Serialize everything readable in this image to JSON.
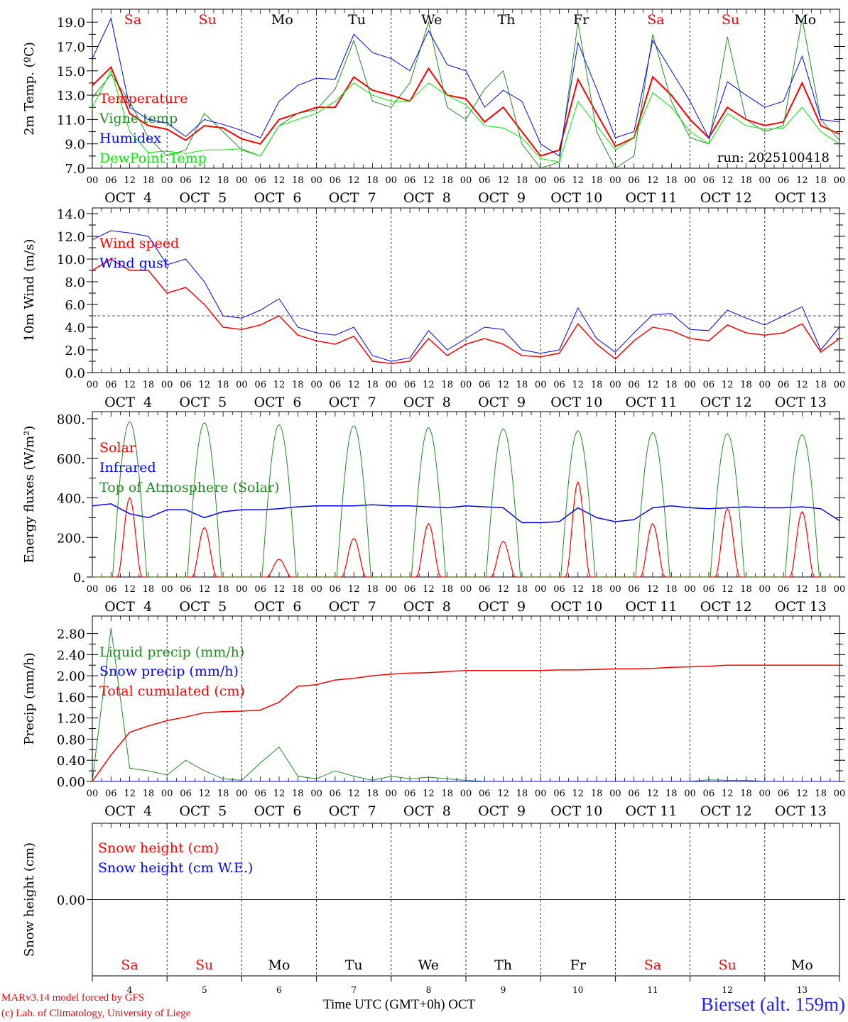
{
  "footer": {
    "credit_line1": "MARv3.14 model forced by GFS",
    "credit_line2": "(c) Lab. of Climatology, University of Liege",
    "time_axis_label": "Time UTC (GMT+0h) OCT",
    "station": "Bierset (alt. 159m)",
    "run": "run: 2025100418"
  },
  "x_axis": {
    "hour_labels": [
      "00",
      "06",
      "12",
      "18"
    ],
    "final_hour_label": "00",
    "date_labels": [
      "OCT  4",
      "OCT  5",
      "OCT  6",
      "OCT  7",
      "OCT  8",
      "OCT  9",
      "OCT 10",
      "OCT 11",
      "OCT 12",
      "OCT 13"
    ],
    "day_numbers": [
      "4",
      "5",
      "6",
      "7",
      "8",
      "9",
      "10",
      "11",
      "12",
      "13"
    ],
    "day_names": [
      "Sa",
      "Su",
      "Mo",
      "Tu",
      "We",
      "Th",
      "Fr",
      "Sa",
      "Su",
      "Mo"
    ],
    "day_name_colors": [
      "#ff0000",
      "#ff0000",
      "#000000",
      "#000000",
      "#000000",
      "#000000",
      "#000000",
      "#ff0000",
      "#ff0000",
      "#000000"
    ],
    "days": 10,
    "step_hours": 6
  },
  "chart_data": [
    {
      "type": "line",
      "ylabel": "2m Temp. (ºC)",
      "ylim": [
        7.0,
        20.06
      ],
      "yticks": [
        7.0,
        9.0,
        11.0,
        13.0,
        15.0,
        17.0,
        19.0
      ],
      "ytick_labels": [
        "7.0",
        "9.0",
        "11.0",
        "13.0",
        "15.0",
        "17.0",
        "19.0"
      ],
      "show_day_names": true,
      "series": [
        {
          "name": "Temperature",
          "color": "#ff0000",
          "width": 2,
          "values": [
            13.8,
            15.3,
            11.5,
            10.5,
            10.2,
            9.3,
            10.5,
            10.3,
            9.4,
            9.0,
            11.0,
            11.5,
            12.0,
            12.0,
            14.5,
            13.4,
            13.0,
            12.5,
            15.2,
            13.0,
            12.7,
            10.8,
            12.0,
            10.0,
            8.0,
            8.5,
            14.3,
            11.5,
            8.8,
            9.5,
            14.5,
            13.0,
            11.0,
            9.5,
            12.0,
            11.0,
            10.5,
            10.8,
            14.0,
            10.5,
            9.8
          ]
        },
        {
          "name": "Vigne temp",
          "color": "#228b22",
          "width": 1,
          "values": [
            12.8,
            14.7,
            12.5,
            9.5,
            8.0,
            8.5,
            11.5,
            10.0,
            8.5,
            8.0,
            10.5,
            11.5,
            11.8,
            13.5,
            17.5,
            12.5,
            12.0,
            14.0,
            19.0,
            12.0,
            11.0,
            13.5,
            15.0,
            9.0,
            7.0,
            7.5,
            19.0,
            10.0,
            6.5,
            8.0,
            18.0,
            12.5,
            9.5,
            9.0,
            17.8,
            11.0,
            10.0,
            10.5,
            19.3,
            11.0,
            9.3
          ]
        },
        {
          "name": "Humidex",
          "color": "#0000ff",
          "width": 1,
          "values": [
            16.0,
            19.3,
            12.0,
            11.0,
            10.7,
            9.6,
            11.0,
            10.6,
            10.1,
            9.5,
            12.5,
            13.8,
            14.4,
            14.3,
            18.0,
            16.5,
            16.0,
            15.0,
            18.3,
            15.5,
            15.0,
            12.0,
            13.4,
            12.5,
            9.0,
            8.0,
            17.3,
            13.5,
            9.5,
            10.0,
            17.5,
            15.0,
            12.5,
            9.5,
            14.1,
            13.0,
            12.0,
            12.5,
            16.2,
            11.0,
            10.8
          ]
        },
        {
          "name": "DewPoint Temp",
          "color": "#00ee00",
          "width": 1,
          "values": [
            12.0,
            15.0,
            10.0,
            8.3,
            8.4,
            8.2,
            8.5,
            8.5,
            8.6,
            8.0,
            10.5,
            11.0,
            11.5,
            12.5,
            14.0,
            13.0,
            12.5,
            12.5,
            14.0,
            13.0,
            12.2,
            10.5,
            10.3,
            9.5,
            7.8,
            7.5,
            12.5,
            10.5,
            8.5,
            9.5,
            13.2,
            12.0,
            10.0,
            9.0,
            11.5,
            10.5,
            10.2,
            10.3,
            12.0,
            10.0,
            9.0
          ]
        }
      ]
    },
    {
      "type": "line",
      "ylabel": "10m Wind (m/s)",
      "ylim": [
        0,
        14.5
      ],
      "yticks": [
        0,
        2,
        4,
        6,
        8,
        10,
        12,
        14
      ],
      "ytick_labels": [
        "0.0",
        "2.0",
        "4.0",
        "6.0",
        "8.0",
        "10.0",
        "12.0",
        "14.0"
      ],
      "reference_line": 5.0,
      "series": [
        {
          "name": "Wind speed",
          "color": "#ff0000",
          "width": 1.5,
          "values": [
            9.0,
            10.0,
            9.0,
            9.0,
            7.0,
            7.5,
            6.0,
            4.0,
            3.8,
            4.2,
            5.0,
            3.3,
            2.8,
            2.5,
            3.2,
            1.0,
            0.8,
            1.0,
            3.0,
            1.5,
            2.5,
            3.0,
            2.5,
            1.5,
            1.4,
            1.7,
            4.3,
            2.5,
            1.2,
            2.8,
            4.0,
            3.7,
            3.0,
            2.8,
            4.2,
            3.5,
            3.3,
            3.5,
            4.3,
            1.8,
            3.0
          ]
        },
        {
          "name": "Wind gust",
          "color": "#0000ff",
          "width": 1,
          "values": [
            11.7,
            12.5,
            12.3,
            12.0,
            9.5,
            10.0,
            8.0,
            5.0,
            4.8,
            5.5,
            6.5,
            4.0,
            3.5,
            3.3,
            4.0,
            1.5,
            1.0,
            1.3,
            3.7,
            2.0,
            3.0,
            4.0,
            3.8,
            2.0,
            1.7,
            2.0,
            5.7,
            3.0,
            1.8,
            3.5,
            5.1,
            5.2,
            3.8,
            3.7,
            5.5,
            4.8,
            4.2,
            5.0,
            5.8,
            2.0,
            4.0
          ]
        }
      ]
    },
    {
      "type": "line",
      "ylabel": "Energy fluxes (W/m²)",
      "ylim": [
        0,
        836
      ],
      "yticks": [
        0,
        200,
        400,
        600,
        800
      ],
      "ytick_labels": [
        "0.",
        "200.",
        "400.",
        "600.",
        "800."
      ],
      "series": [
        {
          "name": "Solar",
          "color": "#ff0000",
          "width": 1.2,
          "daily_peaks": [
            400,
            250,
            90,
            195,
            270,
            180,
            480,
            270,
            345,
            330
          ],
          "shape": "narrow"
        },
        {
          "name": "Infrared",
          "color": "#0000ff",
          "width": 1.5,
          "values": [
            360,
            370,
            320,
            300,
            340,
            340,
            300,
            330,
            340,
            340,
            345,
            355,
            360,
            360,
            360,
            365,
            360,
            360,
            355,
            350,
            360,
            355,
            350,
            275,
            275,
            280,
            350,
            300,
            280,
            290,
            350,
            360,
            350,
            345,
            350,
            355,
            350,
            350,
            355,
            345,
            285
          ]
        },
        {
          "name": "Top of Atmosphere (Solar)",
          "color": "#228b22",
          "width": 1,
          "daily_peaks": [
            785,
            780,
            770,
            765,
            755,
            750,
            740,
            730,
            725,
            720
          ],
          "shape": "wide"
        }
      ]
    },
    {
      "type": "line",
      "ylabel": "Precip (mm/h)",
      "ylim": [
        0,
        3.13
      ],
      "yticks": [
        0,
        0.4,
        0.8,
        1.2,
        1.6,
        2.0,
        2.4,
        2.8
      ],
      "ytick_labels": [
        "0.00",
        "0.40",
        "0.80",
        "1.20",
        "1.60",
        "2.00",
        "2.40",
        "2.80"
      ],
      "series": [
        {
          "name": "Liquid precip (mm/h)",
          "color": "#228b22",
          "width": 1,
          "values": [
            0,
            2.9,
            0.25,
            0.2,
            0.12,
            0.4,
            0.2,
            0.05,
            0.02,
            0.35,
            0.65,
            0.1,
            0.05,
            0.2,
            0.1,
            0.02,
            0.1,
            0.05,
            0.08,
            0.05,
            0.02,
            0,
            0,
            0,
            0,
            0,
            0,
            0,
            0,
            0,
            0,
            0,
            0,
            0.03,
            0.02,
            0.02,
            0,
            0,
            0,
            0,
            0
          ]
        },
        {
          "name": "Snow precip (mm/h)",
          "color": "#0000ff",
          "width": 1,
          "values": [
            0,
            0,
            0,
            0,
            0,
            0,
            0,
            0,
            0,
            0,
            0,
            0,
            0,
            0,
            0,
            0,
            0,
            0,
            0,
            0,
            0,
            0,
            0,
            0,
            0,
            0,
            0,
            0,
            0,
            0,
            0,
            0,
            0,
            0,
            0,
            0,
            0,
            0,
            0,
            0,
            0
          ]
        },
        {
          "name": "Total cumulated (cm)",
          "color": "#ff0000",
          "width": 1.5,
          "values": [
            0,
            0.5,
            0.93,
            1.05,
            1.15,
            1.22,
            1.3,
            1.32,
            1.33,
            1.35,
            1.5,
            1.8,
            1.83,
            1.92,
            1.95,
            2.0,
            2.03,
            2.05,
            2.06,
            2.08,
            2.1,
            2.1,
            2.1,
            2.1,
            2.1,
            2.11,
            2.11,
            2.12,
            2.13,
            2.13,
            2.14,
            2.16,
            2.17,
            2.18,
            2.2,
            2.2,
            2.2,
            2.2,
            2.2,
            2.2,
            2.2
          ]
        }
      ]
    },
    {
      "type": "line",
      "ylabel": "Snow height (cm)",
      "ylim": [
        -1,
        1
      ],
      "yticks": [
        0
      ],
      "ytick_labels": [
        "0.00"
      ],
      "show_day_names_bottom": true,
      "series": [
        {
          "name": "Snow height (cm)",
          "color": "#ff0000",
          "width": 1,
          "values": [
            0,
            0,
            0,
            0,
            0,
            0,
            0,
            0,
            0,
            0,
            0,
            0,
            0,
            0,
            0,
            0,
            0,
            0,
            0,
            0,
            0,
            0,
            0,
            0,
            0,
            0,
            0,
            0,
            0,
            0,
            0,
            0,
            0,
            0,
            0,
            0,
            0,
            0,
            0,
            0,
            0
          ]
        },
        {
          "name": "Snow height (cm W.E.)",
          "color": "#0000ff",
          "width": 1,
          "values": [
            0,
            0,
            0,
            0,
            0,
            0,
            0,
            0,
            0,
            0,
            0,
            0,
            0,
            0,
            0,
            0,
            0,
            0,
            0,
            0,
            0,
            0,
            0,
            0,
            0,
            0,
            0,
            0,
            0,
            0,
            0,
            0,
            0,
            0,
            0,
            0,
            0,
            0,
            0,
            0,
            0
          ]
        }
      ]
    }
  ]
}
